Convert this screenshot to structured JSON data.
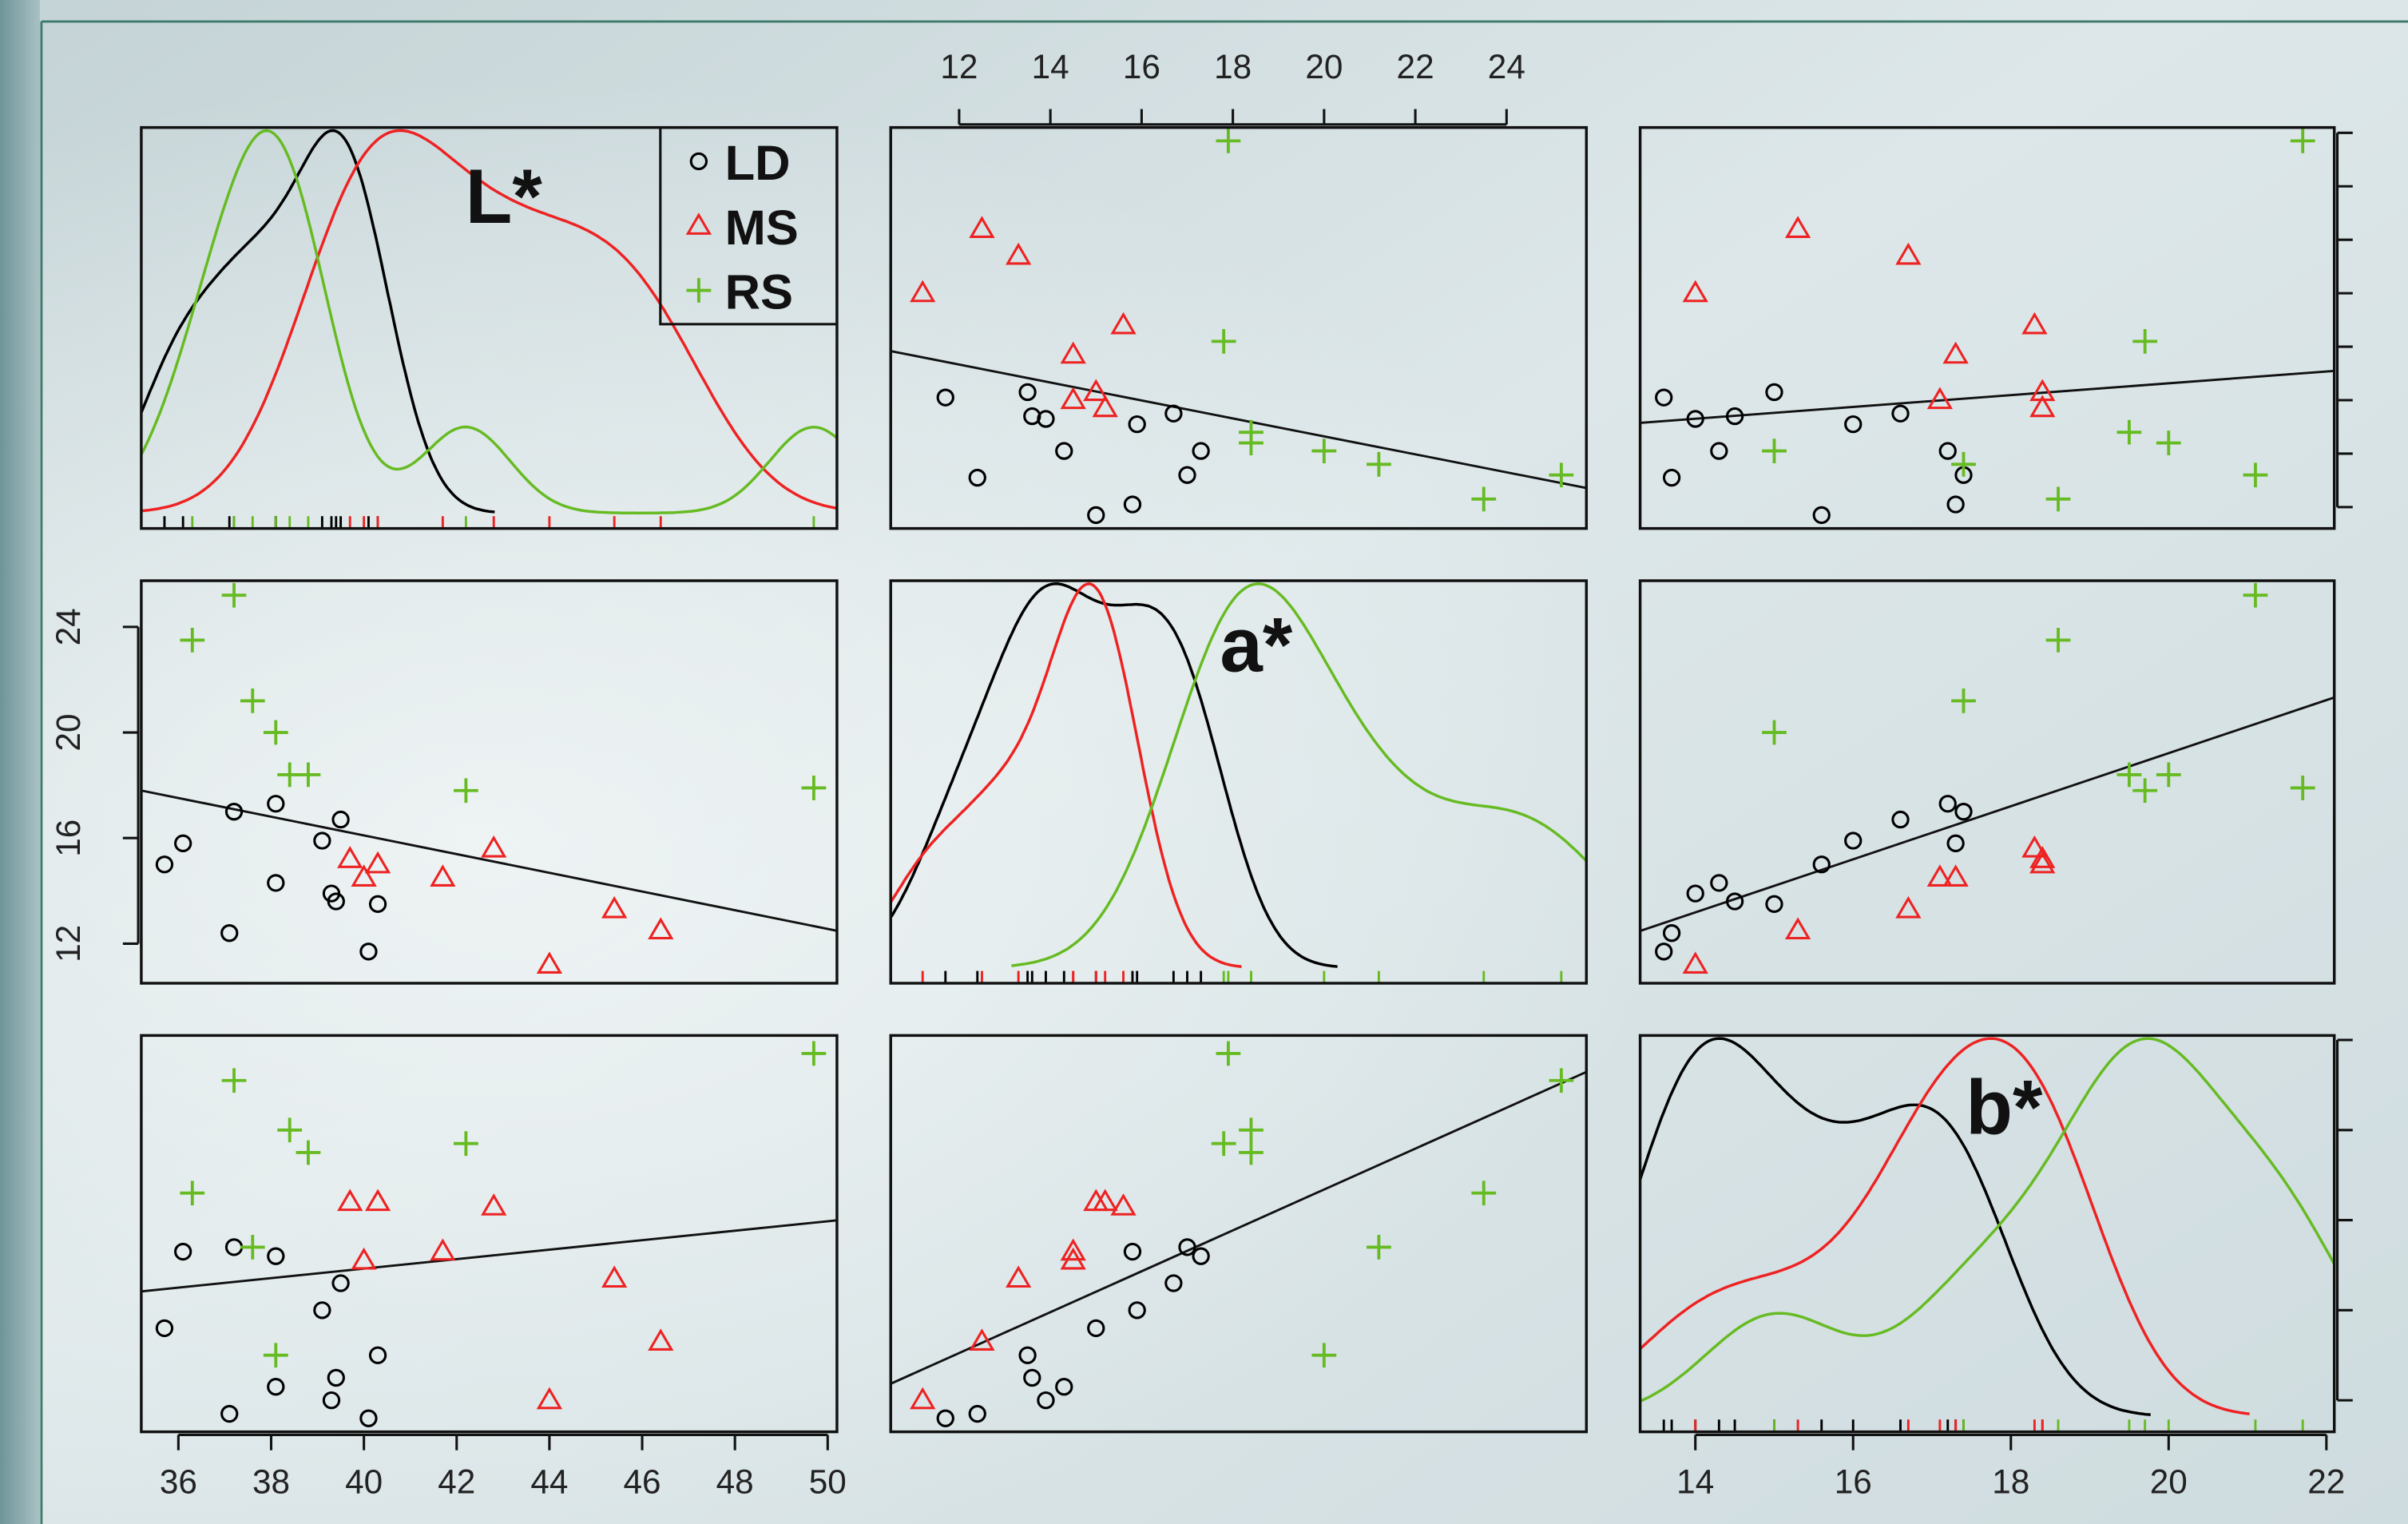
{
  "chart_data": {
    "type": "pairs",
    "variables": [
      {
        "label": "L*",
        "lim": [
          35.2,
          50.2
        ],
        "ticks": [
          36,
          38,
          40,
          42,
          44,
          46,
          48,
          50
        ]
      },
      {
        "label": "a*",
        "lim": [
          10.5,
          25.75
        ],
        "ticks": [
          12,
          14,
          16,
          18,
          20,
          22,
          24
        ],
        "yticks": [
          12,
          16,
          20,
          24
        ]
      },
      {
        "label": "b*",
        "lim": [
          13.3,
          22.1
        ],
        "ticks": [
          14,
          16,
          18,
          20,
          22
        ]
      }
    ],
    "series": [
      {
        "name": "LD",
        "color": "#000000",
        "marker": "circle",
        "values": [
          [
            40.1,
            37.1,
            39.3,
            38.1,
            39.4,
            40.3,
            35.7,
            39.1,
            39.5,
            38.1,
            37.2,
            36.1
          ],
          [
            11.7,
            12.4,
            13.9,
            14.3,
            13.6,
            13.5,
            15.0,
            15.9,
            16.7,
            17.3,
            17.0,
            15.8
          ],
          [
            13.6,
            13.7,
            14.0,
            14.3,
            14.5,
            15.0,
            15.6,
            16.0,
            16.6,
            17.2,
            17.4,
            17.3
          ]
        ]
      },
      {
        "name": "MS",
        "color": "#ee2222",
        "marker": "triangle",
        "values": [
          [
            44.0,
            46.4,
            45.4,
            40.0,
            41.7,
            42.8,
            39.7,
            40.3
          ],
          [
            11.2,
            12.5,
            13.3,
            14.5,
            14.5,
            15.6,
            15.2,
            15.0
          ],
          [
            14.0,
            15.3,
            16.7,
            17.1,
            17.3,
            18.3,
            18.4,
            18.4
          ]
        ]
      },
      {
        "name": "RS",
        "color": "#66bb22",
        "marker": "plus",
        "values": [
          [
            37.2,
            36.3,
            37.6,
            38.1,
            38.4,
            38.8,
            42.2,
            49.7
          ],
          [
            25.2,
            23.5,
            21.2,
            20.0,
            18.4,
            18.4,
            17.8,
            17.9
          ],
          [
            21.1,
            18.6,
            17.4,
            15.0,
            20.0,
            19.5,
            19.7,
            21.7
          ]
        ]
      }
    ],
    "legend": "top-right",
    "regression": true
  }
}
